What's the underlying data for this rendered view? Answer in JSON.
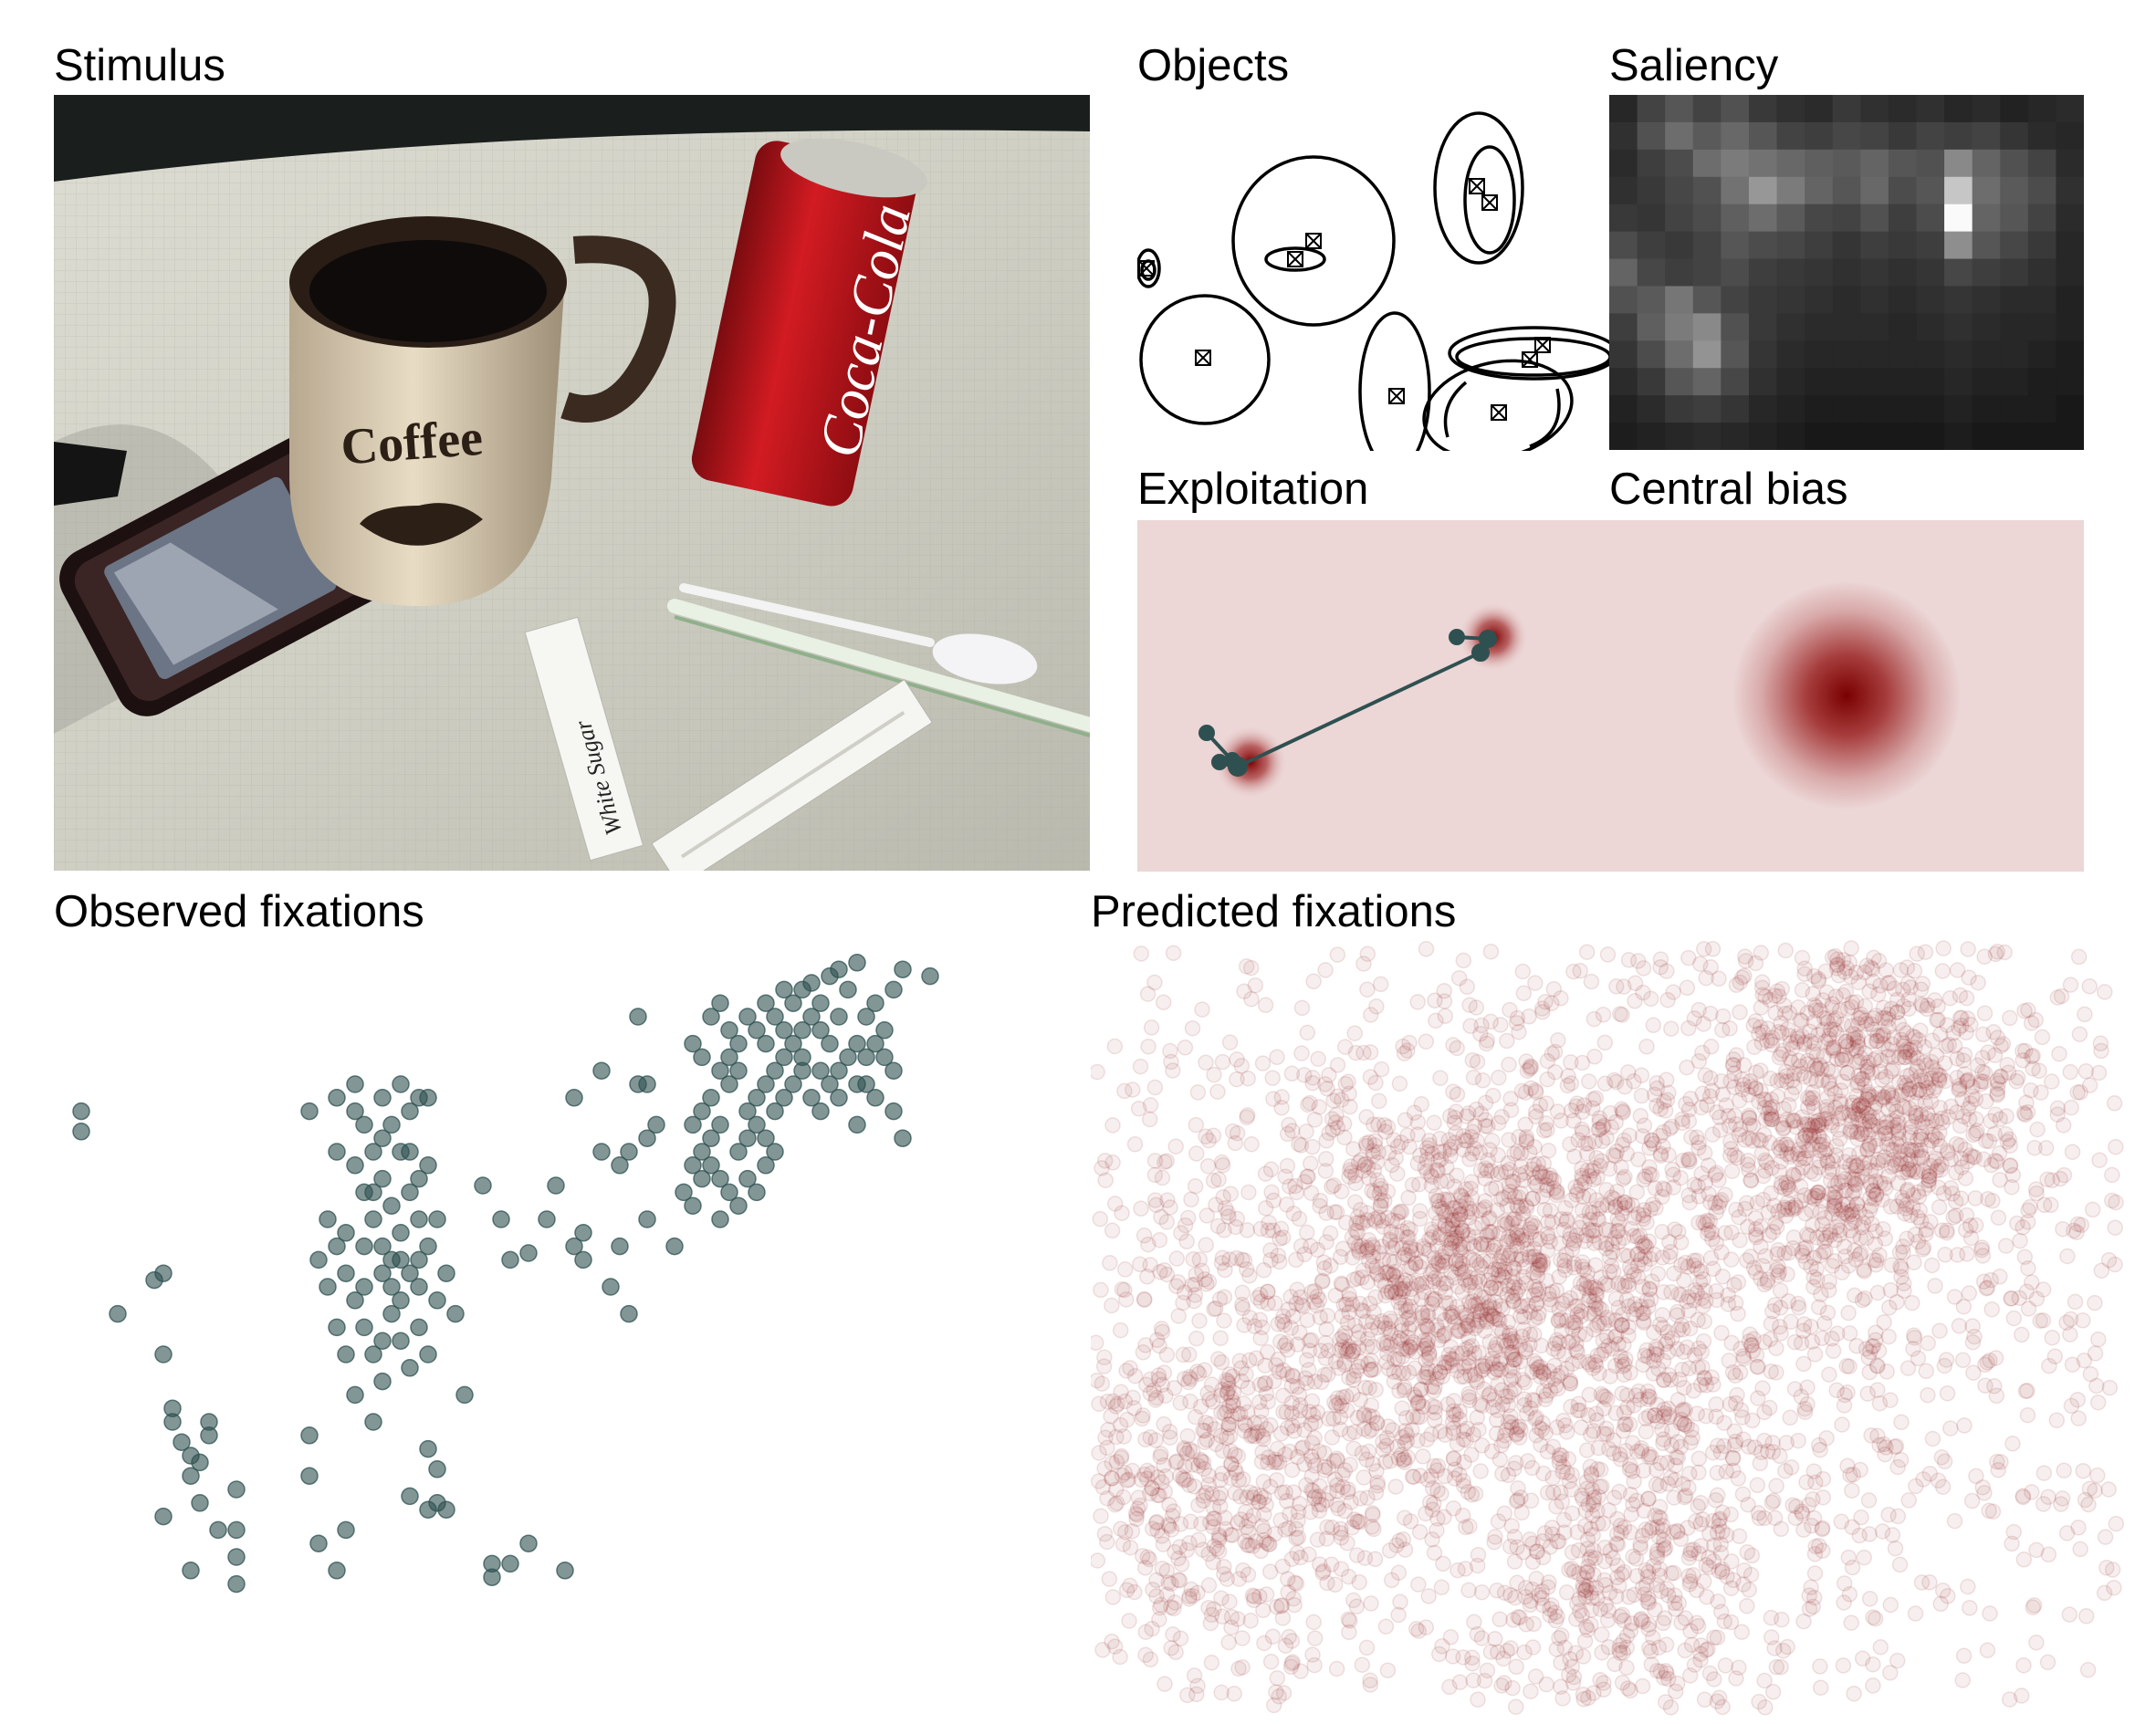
{
  "panels": {
    "stimulus": {
      "title": "Stimulus",
      "mug_text": "Coffee",
      "can_text": "Coca-Cola",
      "sachet_text": "White Sugar"
    },
    "objects": {
      "title": "Objects"
    },
    "saliency": {
      "title": "Saliency"
    },
    "exploitation": {
      "title": "Exploitation"
    },
    "central_bias": {
      "title": "Central bias"
    },
    "observed": {
      "title": "Observed fixations"
    },
    "predicted": {
      "title": "Predicted fixations"
    }
  },
  "colors": {
    "fixation": "#2f5050",
    "predicted": "#8b1a1a",
    "map_background": "#ecd6d6",
    "map_peak": "#7a0000"
  },
  "saliency_grid": [
    [
      0.1,
      0.22,
      0.3,
      0.22,
      0.28,
      0.18,
      0.14,
      0.12,
      0.18,
      0.14,
      0.12,
      0.14,
      0.1,
      0.12,
      0.08,
      0.1,
      0.12
    ],
    [
      0.14,
      0.28,
      0.4,
      0.32,
      0.38,
      0.3,
      0.22,
      0.2,
      0.24,
      0.22,
      0.18,
      0.22,
      0.2,
      0.22,
      0.16,
      0.12,
      0.1
    ],
    [
      0.12,
      0.2,
      0.26,
      0.4,
      0.46,
      0.42,
      0.38,
      0.34,
      0.32,
      0.36,
      0.3,
      0.28,
      0.52,
      0.36,
      0.28,
      0.22,
      0.12
    ],
    [
      0.14,
      0.18,
      0.24,
      0.28,
      0.42,
      0.58,
      0.46,
      0.36,
      0.3,
      0.38,
      0.26,
      0.3,
      0.78,
      0.4,
      0.32,
      0.26,
      0.14
    ],
    [
      0.18,
      0.16,
      0.22,
      0.26,
      0.34,
      0.4,
      0.32,
      0.24,
      0.22,
      0.28,
      0.2,
      0.26,
      1.0,
      0.36,
      0.3,
      0.22,
      0.12
    ],
    [
      0.26,
      0.2,
      0.18,
      0.22,
      0.3,
      0.26,
      0.24,
      0.2,
      0.16,
      0.2,
      0.18,
      0.2,
      0.54,
      0.3,
      0.24,
      0.18,
      0.1
    ],
    [
      0.36,
      0.24,
      0.2,
      0.22,
      0.26,
      0.2,
      0.18,
      0.16,
      0.14,
      0.16,
      0.14,
      0.16,
      0.24,
      0.2,
      0.18,
      0.14,
      0.1
    ],
    [
      0.28,
      0.32,
      0.44,
      0.3,
      0.22,
      0.18,
      0.16,
      0.14,
      0.12,
      0.14,
      0.12,
      0.14,
      0.16,
      0.14,
      0.12,
      0.12,
      0.08
    ],
    [
      0.2,
      0.34,
      0.46,
      0.52,
      0.28,
      0.18,
      0.14,
      0.12,
      0.12,
      0.12,
      0.1,
      0.12,
      0.14,
      0.12,
      0.1,
      0.1,
      0.08
    ],
    [
      0.16,
      0.26,
      0.4,
      0.56,
      0.3,
      0.16,
      0.12,
      0.1,
      0.1,
      0.1,
      0.1,
      0.1,
      0.12,
      0.1,
      0.1,
      0.08,
      0.06
    ],
    [
      0.12,
      0.18,
      0.3,
      0.36,
      0.24,
      0.14,
      0.1,
      0.08,
      0.08,
      0.08,
      0.08,
      0.08,
      0.1,
      0.08,
      0.08,
      0.06,
      0.06
    ],
    [
      0.08,
      0.12,
      0.18,
      0.2,
      0.16,
      0.1,
      0.08,
      0.06,
      0.06,
      0.06,
      0.06,
      0.06,
      0.08,
      0.06,
      0.06,
      0.06,
      0.04
    ],
    [
      0.06,
      0.08,
      0.1,
      0.12,
      0.1,
      0.08,
      0.06,
      0.04,
      0.04,
      0.04,
      0.04,
      0.04,
      0.06,
      0.04,
      0.04,
      0.04,
      0.04
    ]
  ],
  "observed_points": [
    [
      0.03,
      0.24
    ],
    [
      0.03,
      0.27
    ],
    [
      0.07,
      0.54
    ],
    [
      0.11,
      0.49
    ],
    [
      0.12,
      0.48
    ],
    [
      0.12,
      0.6
    ],
    [
      0.13,
      0.68
    ],
    [
      0.13,
      0.7
    ],
    [
      0.14,
      0.73
    ],
    [
      0.15,
      0.75
    ],
    [
      0.12,
      0.84
    ],
    [
      0.15,
      0.78
    ],
    [
      0.17,
      0.7
    ],
    [
      0.17,
      0.72
    ],
    [
      0.16,
      0.76
    ],
    [
      0.16,
      0.82
    ],
    [
      0.18,
      0.86
    ],
    [
      0.2,
      0.8
    ],
    [
      0.2,
      0.86
    ],
    [
      0.15,
      0.92
    ],
    [
      0.2,
      0.9
    ],
    [
      0.2,
      0.94
    ],
    [
      0.28,
      0.72
    ],
    [
      0.28,
      0.78
    ],
    [
      0.29,
      0.88
    ],
    [
      0.32,
      0.86
    ],
    [
      0.31,
      0.92
    ],
    [
      0.39,
      0.81
    ],
    [
      0.41,
      0.83
    ],
    [
      0.42,
      0.77
    ],
    [
      0.42,
      0.82
    ],
    [
      0.52,
      0.88
    ],
    [
      0.5,
      0.91
    ],
    [
      0.43,
      0.83
    ],
    [
      0.48,
      0.91
    ],
    [
      0.48,
      0.93
    ],
    [
      0.56,
      0.92
    ],
    [
      0.28,
      0.24
    ],
    [
      0.31,
      0.22
    ],
    [
      0.33,
      0.2
    ],
    [
      0.33,
      0.24
    ],
    [
      0.34,
      0.26
    ],
    [
      0.36,
      0.22
    ],
    [
      0.38,
      0.2
    ],
    [
      0.39,
      0.24
    ],
    [
      0.4,
      0.22
    ],
    [
      0.41,
      0.22
    ],
    [
      0.31,
      0.3
    ],
    [
      0.33,
      0.32
    ],
    [
      0.34,
      0.36
    ],
    [
      0.35,
      0.4
    ],
    [
      0.36,
      0.34
    ],
    [
      0.37,
      0.38
    ],
    [
      0.38,
      0.42
    ],
    [
      0.39,
      0.36
    ],
    [
      0.4,
      0.4
    ],
    [
      0.41,
      0.44
    ],
    [
      0.29,
      0.46
    ],
    [
      0.3,
      0.5
    ],
    [
      0.32,
      0.48
    ],
    [
      0.33,
      0.52
    ],
    [
      0.34,
      0.56
    ],
    [
      0.35,
      0.6
    ],
    [
      0.36,
      0.58
    ],
    [
      0.37,
      0.54
    ],
    [
      0.38,
      0.58
    ],
    [
      0.39,
      0.62
    ],
    [
      0.4,
      0.56
    ],
    [
      0.41,
      0.6
    ],
    [
      0.31,
      0.56
    ],
    [
      0.32,
      0.6
    ],
    [
      0.33,
      0.66
    ],
    [
      0.36,
      0.64
    ],
    [
      0.34,
      0.5
    ],
    [
      0.36,
      0.48
    ],
    [
      0.38,
      0.46
    ],
    [
      0.4,
      0.5
    ],
    [
      0.42,
      0.52
    ],
    [
      0.43,
      0.48
    ],
    [
      0.44,
      0.54
    ],
    [
      0.39,
      0.3
    ],
    [
      0.4,
      0.34
    ],
    [
      0.41,
      0.32
    ],
    [
      0.42,
      0.4
    ],
    [
      0.36,
      0.28
    ],
    [
      0.37,
      0.26
    ],
    [
      0.38,
      0.3
    ],
    [
      0.35,
      0.3
    ],
    [
      0.3,
      0.4
    ],
    [
      0.31,
      0.44
    ],
    [
      0.32,
      0.42
    ],
    [
      0.34,
      0.44
    ],
    [
      0.37,
      0.46
    ],
    [
      0.45,
      0.66
    ],
    [
      0.47,
      0.35
    ],
    [
      0.49,
      0.4
    ],
    [
      0.5,
      0.46
    ],
    [
      0.52,
      0.45
    ],
    [
      0.54,
      0.4
    ],
    [
      0.55,
      0.35
    ],
    [
      0.57,
      0.44
    ],
    [
      0.58,
      0.46
    ],
    [
      0.61,
      0.5
    ],
    [
      0.62,
      0.32
    ],
    [
      0.64,
      0.2
    ],
    [
      0.57,
      0.22
    ],
    [
      0.6,
      0.3
    ],
    [
      0.63,
      0.3
    ],
    [
      0.65,
      0.28
    ],
    [
      0.66,
      0.26
    ],
    [
      0.58,
      0.42
    ],
    [
      0.62,
      0.44
    ],
    [
      0.65,
      0.4
    ],
    [
      0.68,
      0.44
    ],
    [
      0.63,
      0.54
    ],
    [
      0.7,
      0.32
    ],
    [
      0.71,
      0.3
    ],
    [
      0.72,
      0.28
    ],
    [
      0.73,
      0.26
    ],
    [
      0.74,
      0.2
    ],
    [
      0.75,
      0.18
    ],
    [
      0.76,
      0.24
    ],
    [
      0.77,
      0.22
    ],
    [
      0.78,
      0.2
    ],
    [
      0.79,
      0.18
    ],
    [
      0.8,
      0.16
    ],
    [
      0.81,
      0.14
    ],
    [
      0.82,
      0.12
    ],
    [
      0.83,
      0.1
    ],
    [
      0.84,
      0.08
    ],
    [
      0.85,
      0.14
    ],
    [
      0.86,
      0.1
    ],
    [
      0.74,
      0.12
    ],
    [
      0.75,
      0.14
    ],
    [
      0.76,
      0.1
    ],
    [
      0.77,
      0.12
    ],
    [
      0.78,
      0.14
    ],
    [
      0.79,
      0.1
    ],
    [
      0.8,
      0.12
    ],
    [
      0.81,
      0.08
    ],
    [
      0.82,
      0.06
    ],
    [
      0.83,
      0.05
    ],
    [
      0.84,
      0.12
    ],
    [
      0.85,
      0.04
    ],
    [
      0.86,
      0.03
    ],
    [
      0.87,
      0.06
    ],
    [
      0.88,
      0.02
    ],
    [
      0.73,
      0.18
    ],
    [
      0.74,
      0.16
    ],
    [
      0.72,
      0.22
    ],
    [
      0.71,
      0.24
    ],
    [
      0.7,
      0.26
    ],
    [
      0.72,
      0.32
    ],
    [
      0.73,
      0.34
    ],
    [
      0.75,
      0.3
    ],
    [
      0.76,
      0.28
    ],
    [
      0.77,
      0.26
    ],
    [
      0.78,
      0.28
    ],
    [
      0.79,
      0.24
    ],
    [
      0.8,
      0.22
    ],
    [
      0.81,
      0.2
    ],
    [
      0.82,
      0.18
    ],
    [
      0.83,
      0.22
    ],
    [
      0.84,
      0.24
    ],
    [
      0.85,
      0.2
    ],
    [
      0.86,
      0.18
    ],
    [
      0.87,
      0.16
    ],
    [
      0.88,
      0.14
    ],
    [
      0.89,
      0.1
    ],
    [
      0.9,
      0.08
    ],
    [
      0.91,
      0.12
    ],
    [
      0.92,
      0.06
    ],
    [
      0.93,
      0.03
    ],
    [
      0.96,
      0.04
    ],
    [
      0.9,
      0.22
    ],
    [
      0.89,
      0.2
    ],
    [
      0.88,
      0.26
    ],
    [
      0.92,
      0.18
    ],
    [
      0.91,
      0.16
    ],
    [
      0.93,
      0.28
    ],
    [
      0.92,
      0.24
    ],
    [
      0.7,
      0.14
    ],
    [
      0.71,
      0.16
    ],
    [
      0.72,
      0.1
    ],
    [
      0.73,
      0.08
    ],
    [
      0.69,
      0.36
    ],
    [
      0.7,
      0.38
    ],
    [
      0.71,
      0.34
    ],
    [
      0.73,
      0.4
    ],
    [
      0.74,
      0.36
    ],
    [
      0.75,
      0.38
    ],
    [
      0.76,
      0.34
    ],
    [
      0.77,
      0.36
    ],
    [
      0.78,
      0.32
    ],
    [
      0.79,
      0.3
    ],
    [
      0.78,
      0.08
    ],
    [
      0.8,
      0.06
    ],
    [
      0.82,
      0.16
    ],
    [
      0.84,
      0.18
    ],
    [
      0.86,
      0.22
    ],
    [
      0.88,
      0.2
    ],
    [
      0.89,
      0.16
    ],
    [
      0.9,
      0.14
    ],
    [
      0.64,
      0.1
    ],
    [
      0.65,
      0.2
    ],
    [
      0.6,
      0.18
    ],
    [
      0.35,
      0.36
    ],
    [
      0.36,
      0.44
    ],
    [
      0.37,
      0.5
    ],
    [
      0.38,
      0.52
    ],
    [
      0.39,
      0.48
    ],
    [
      0.4,
      0.46
    ],
    [
      0.35,
      0.7
    ],
    [
      0.41,
      0.74
    ]
  ]
}
